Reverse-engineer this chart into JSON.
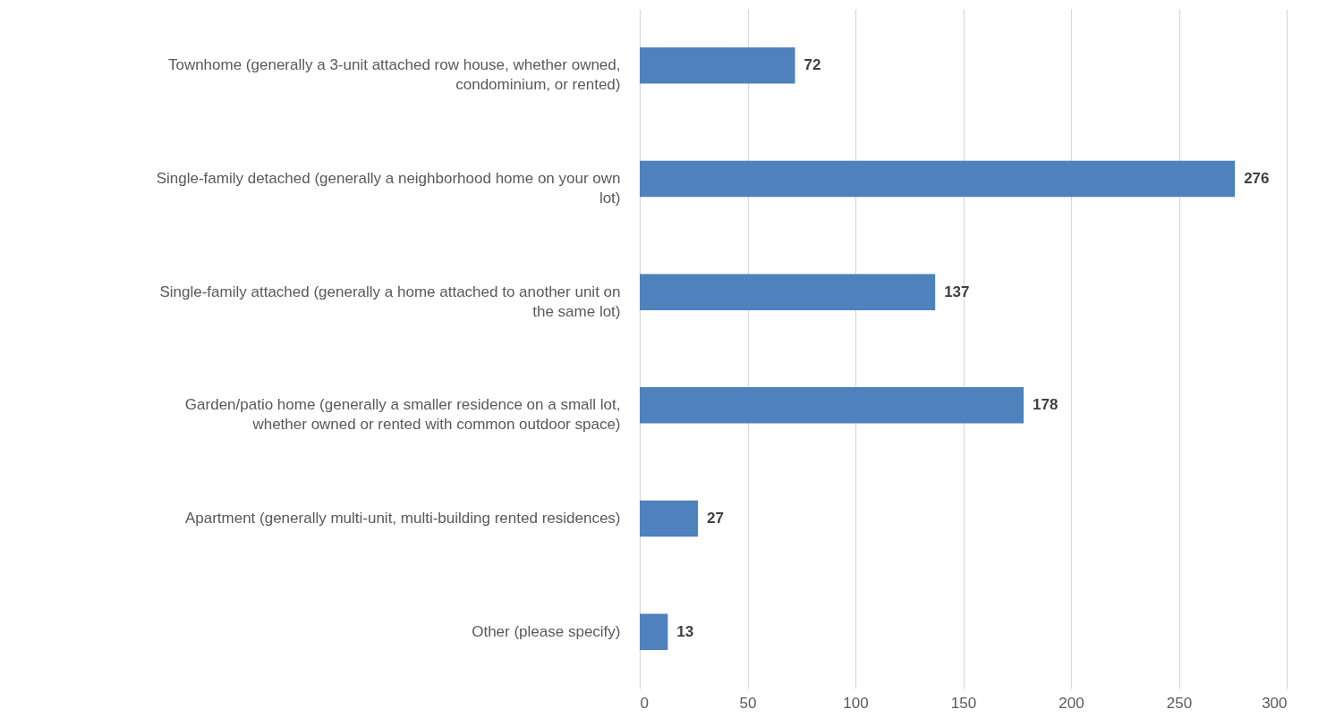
{
  "chart_data": {
    "type": "bar",
    "orientation": "horizontal",
    "categories": [
      "Townhome (generally a 3-unit attached row house, whether owned, condominium, or rented)",
      "Single-family detached (generally a neighborhood home on your own lot)",
      "Single-family attached (generally a home attached to another unit on the same lot)",
      "Garden/patio home (generally a smaller residence on a small lot, whether owned or rented with common outdoor space)",
      "Apartment (generally multi-unit, multi-building rented residences)",
      "Other (please specify)"
    ],
    "values": [
      72,
      276,
      137,
      178,
      27,
      13
    ],
    "color": "#4f81bd",
    "xlim": [
      0,
      300
    ],
    "xticks": [
      0,
      50,
      100,
      150,
      200,
      250,
      300
    ],
    "grid": "x",
    "data_labels": true
  }
}
